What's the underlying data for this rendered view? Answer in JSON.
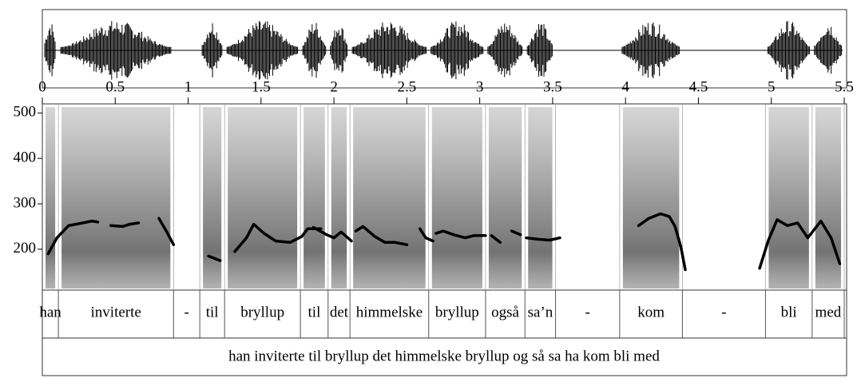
{
  "chart_data": {
    "type": "line",
    "xlim": [
      0,
      5.5
    ],
    "xticks": [
      0,
      0.5,
      1,
      1.5,
      2,
      2.5,
      3,
      3.5,
      4,
      4.5,
      5,
      5.5
    ],
    "ylim": [
      110,
      520
    ],
    "yticks": [
      200,
      300,
      400,
      500
    ],
    "series": [
      {
        "color": "#000000",
        "x": [
          0.04,
          0.1,
          0.18,
          0.28,
          0.34,
          0.38,
          null,
          0.47,
          0.55,
          0.6,
          0.66,
          null,
          0.8,
          0.85,
          0.9,
          null,
          1.14,
          1.22,
          null,
          1.32,
          1.4,
          1.45,
          1.52,
          1.6,
          1.7,
          1.78,
          1.82,
          1.91,
          null,
          1.86,
          1.95,
          2.0,
          2.05,
          2.12,
          null,
          2.15,
          2.2,
          2.28,
          2.35,
          2.42,
          2.5,
          null,
          2.59,
          2.63,
          2.68,
          null,
          2.7,
          2.75,
          2.82,
          2.9,
          2.96,
          3.04,
          null,
          3.08,
          3.14,
          null,
          3.22,
          3.28,
          null,
          3.32,
          3.4,
          3.48,
          3.55,
          null,
          4.09,
          4.16,
          4.24,
          4.3,
          4.34,
          4.38,
          4.41,
          null,
          4.92,
          4.98,
          5.04,
          5.11,
          5.18,
          5.25,
          5.34,
          5.41,
          5.47
        ],
        "values": [
          190,
          225,
          252,
          258,
          262,
          260,
          null,
          252,
          250,
          255,
          258,
          null,
          268,
          240,
          210,
          null,
          185,
          175,
          null,
          195,
          225,
          255,
          235,
          218,
          215,
          228,
          245,
          245,
          null,
          248,
          232,
          225,
          238,
          218,
          null,
          240,
          250,
          228,
          215,
          215,
          210,
          null,
          245,
          225,
          218,
          null,
          235,
          240,
          232,
          225,
          230,
          230,
          null,
          230,
          215,
          null,
          240,
          232,
          null,
          225,
          222,
          220,
          225,
          null,
          252,
          268,
          278,
          272,
          250,
          205,
          155,
          null,
          158,
          220,
          265,
          252,
          258,
          225,
          262,
          225,
          168
        ]
      }
    ],
    "intervals": [
      {
        "label": "han",
        "start": 0,
        "end": 0.11
      },
      {
        "label": "inviterte",
        "start": 0.11,
        "end": 0.9
      },
      {
        "label": "-",
        "start": 0.9,
        "end": 1.08
      },
      {
        "label": "til",
        "start": 1.08,
        "end": 1.25
      },
      {
        "label": "bryllup",
        "start": 1.25,
        "end": 1.77
      },
      {
        "label": "til",
        "start": 1.77,
        "end": 1.96
      },
      {
        "label": "det",
        "start": 1.96,
        "end": 2.11
      },
      {
        "label": "himmelske",
        "start": 2.11,
        "end": 2.65
      },
      {
        "label": "bryllup",
        "start": 2.65,
        "end": 3.04
      },
      {
        "label": "også",
        "start": 3.04,
        "end": 3.31
      },
      {
        "label": "sa’n",
        "start": 3.31,
        "end": 3.52
      },
      {
        "label": "-",
        "start": 3.52,
        "end": 3.96
      },
      {
        "label": "kom",
        "start": 3.96,
        "end": 4.39
      },
      {
        "label": "-",
        "start": 4.39,
        "end": 4.96
      },
      {
        "label": "bli",
        "start": 4.96,
        "end": 5.28
      },
      {
        "label": "med",
        "start": 5.28,
        "end": 5.5
      }
    ],
    "sentence": "han inviterte til bryllup det himmelske bryllup og så sa ha kom bli med"
  }
}
